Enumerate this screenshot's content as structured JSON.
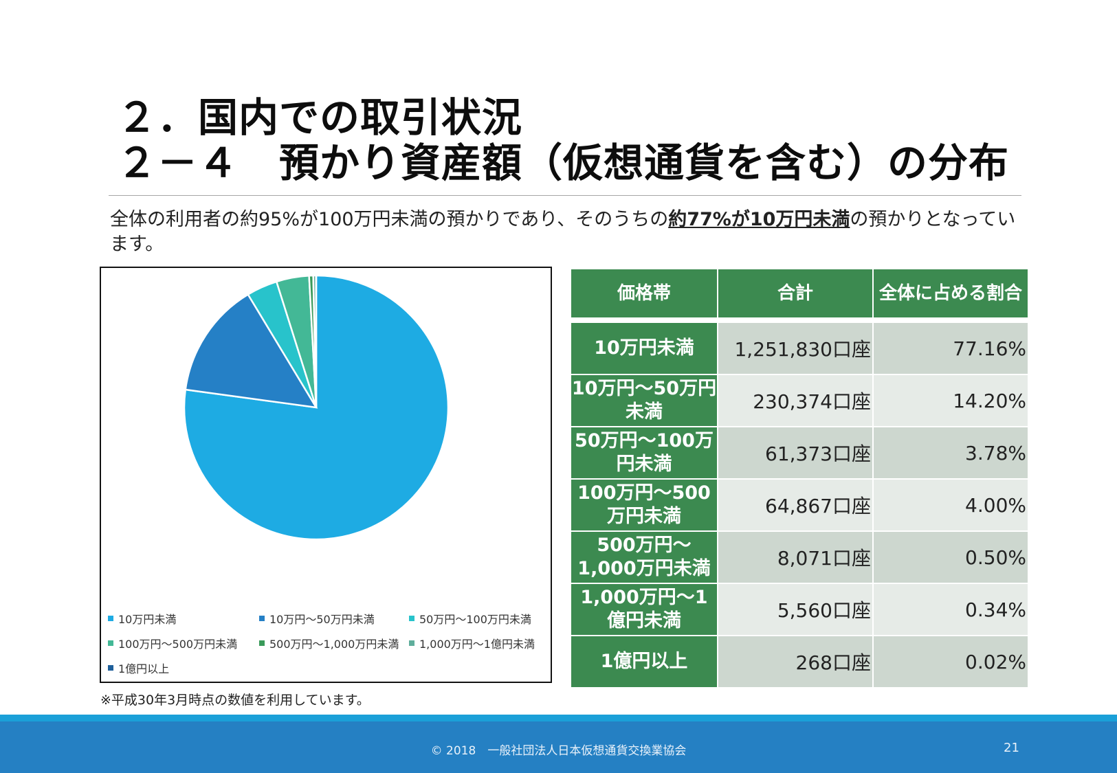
{
  "title": {
    "line1": "２．国内での取引状況",
    "line2": "２－４　預かり資産額（仮想通貨を含む）の分布"
  },
  "lead": {
    "pre": "全体の利用者の約95%が100万円未満の預かりであり、そのうちの",
    "bold": "約77%が10万円未満",
    "post": "の預かりとなっています。"
  },
  "table": {
    "headers": [
      "価格帯",
      "合計",
      "全体に占める割合"
    ],
    "rows": [
      {
        "label": "10万円未満",
        "total": "1,251,830口座",
        "share": "77.16%"
      },
      {
        "label": "10万円～50万円未満",
        "total": "230,374口座",
        "share": "14.20%"
      },
      {
        "label": "50万円～100万円未満",
        "total": "61,373口座",
        "share": "3.78%"
      },
      {
        "label": "100万円～500万円未満",
        "total": "64,867口座",
        "share": "4.00%"
      },
      {
        "label": "500万円～1,000万円未満",
        "total": "8,071口座",
        "share": "0.50%"
      },
      {
        "label": "1,000万円～1億円未満",
        "total": "5,560口座",
        "share": "0.34%"
      },
      {
        "label": "1億円以上",
        "total": "268口座",
        "share": "0.02%"
      }
    ]
  },
  "chart_data": {
    "type": "pie",
    "title": "",
    "categories": [
      "10万円未満",
      "10万円～50万円未満",
      "50万円～100万円未満",
      "100万円～500万円未満",
      "500万円～1,000万円未満",
      "1,000万円～1億円未満",
      "1億円以上"
    ],
    "values": [
      77.16,
      14.2,
      3.78,
      4.0,
      0.5,
      0.34,
      0.02
    ],
    "colors": [
      "#1eabe3",
      "#2580c6",
      "#28c3cb",
      "#43b896",
      "#3a9a5a",
      "#5fae9c",
      "#1e5f9a"
    ],
    "legend_position": "bottom"
  },
  "note": "※平成30年3月時点の数値を利用しています。",
  "footer": {
    "copyright": "© 2018　一般社団法人日本仮想通貨交換業協会",
    "page": "21"
  }
}
